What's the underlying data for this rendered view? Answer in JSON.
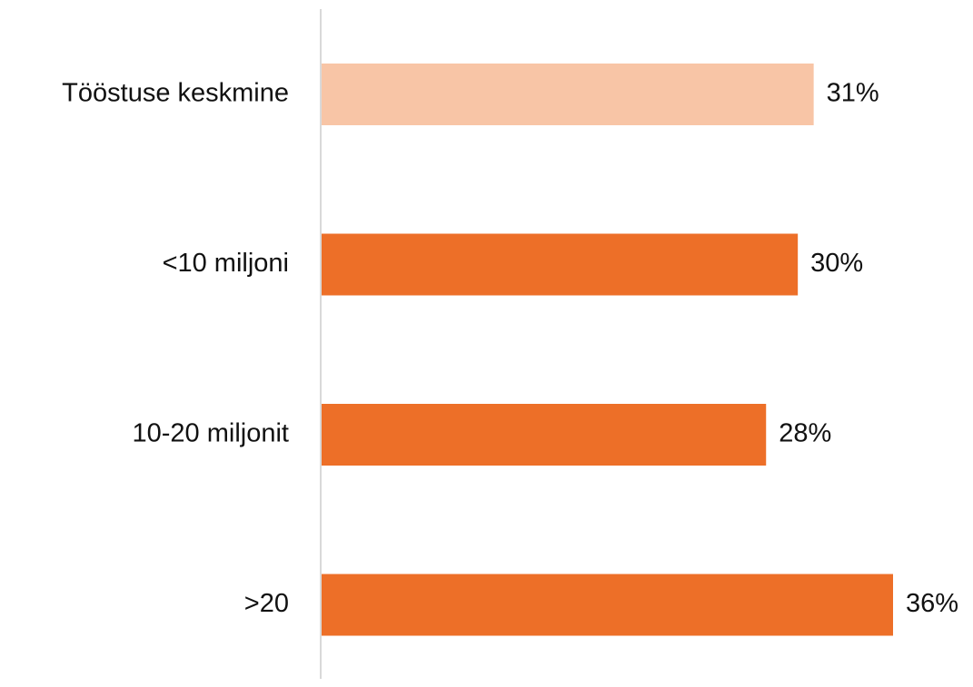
{
  "chart_data": {
    "type": "bar",
    "orientation": "horizontal",
    "categories": [
      "Tööstuse keskmine",
      "<10 miljoni",
      "10-20 miljonit",
      ">20"
    ],
    "values": [
      31,
      30,
      28,
      36
    ],
    "value_labels": [
      "31%",
      "30%",
      "28%",
      "36%"
    ],
    "bar_colors": [
      "#F8C5A6",
      "#ED6F28",
      "#ED6F28",
      "#ED6F28"
    ],
    "xlim": [
      0,
      36
    ],
    "grid": false,
    "title": "",
    "xlabel": "",
    "ylabel": ""
  }
}
